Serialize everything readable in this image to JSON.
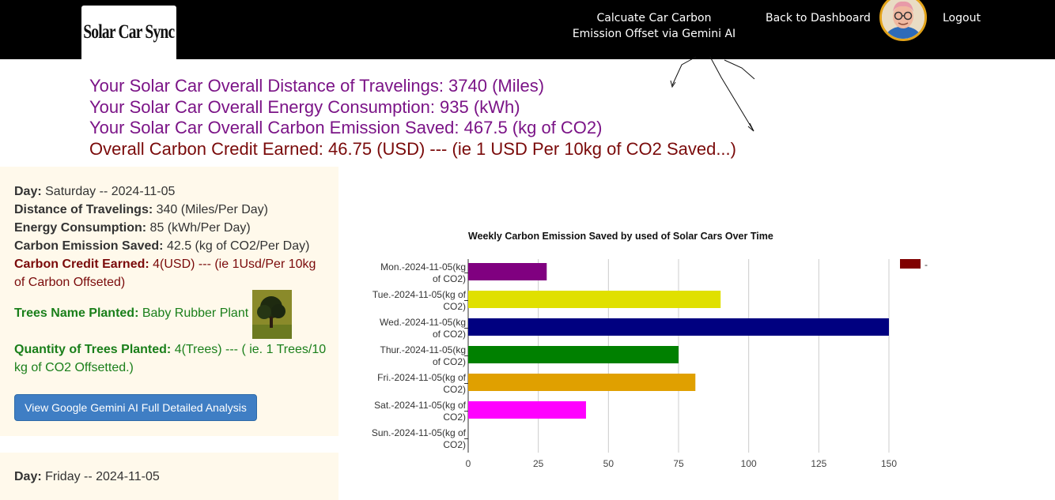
{
  "header": {
    "logo_text": "Solar Car Sync",
    "nav_gemini_line1": "Calcuate Car Carbon",
    "nav_gemini_line2": "Emission Offset via Gemini AI",
    "nav_dashboard": "Back to Dashboard",
    "nav_logout": "Logout"
  },
  "summary": {
    "distance": "Your Solar Car Overall Distance of Travelings: 3740 (Miles)",
    "energy": "Your Solar Car Overall Energy Consumption: 935 (kWh)",
    "emission": "Your Solar Car Overall Carbon Emission Saved: 467.5 (kg of CO2)",
    "credit": "Overall Carbon Credit Earned: 46.75 (USD) --- (ie 1 USD Per 10kg of CO2 Saved...)"
  },
  "day_card": {
    "day_label": "Day:",
    "day_value": " Saturday -- 2024-11-05",
    "distance_label": "Distance of Travelings:",
    "distance_value": " 340 (Miles/Per Day)",
    "energy_label": "Energy Consumption:",
    "energy_value": " 85 (kWh/Per Day)",
    "emission_label": "Carbon Emission Saved:",
    "emission_value": " 42.5 (kg of CO2/Per Day)",
    "credit_label": "Carbon Credit Earned:",
    "credit_value": " 4(USD) --- (ie 1Usd/Per 10kg of Carbon Offseted)",
    "trees_label": "Trees Name Planted:",
    "trees_value": " Baby Rubber Plant",
    "qty_label": "Quantity of Trees Planted:",
    "qty_value": " 4(Trees) --- ( ie. 1 Trees/10 kg of CO2 Offsetted.)",
    "button_label": "View Google Gemini AI Full Detailed Analysis"
  },
  "day_card2": {
    "day_label": "Day:",
    "day_value": " Friday -- 2024-11-05"
  },
  "chart_data": {
    "type": "bar",
    "orientation": "horizontal",
    "title": "Weekly Carbon Emission Saved by used of Solar Cars Over Time",
    "categories": [
      [
        "Mon.-2024-11-05(kg",
        "of CO2)"
      ],
      [
        "Tue.-2024-11-05(kg of",
        "CO2)"
      ],
      [
        "Wed.-2024-11-05(kg",
        "of CO2)"
      ],
      [
        "Thur.-2024-11-05(kg",
        "of CO2)"
      ],
      [
        "Fri.-2024-11-05(kg of",
        "CO2)"
      ],
      [
        "Sat.-2024-11-05(kg of",
        "CO2)"
      ],
      [
        "Sun.-2024-11-05(kg of",
        "CO2)"
      ]
    ],
    "values": [
      28,
      90,
      150,
      75,
      81,
      42,
      0
    ],
    "colors": [
      "#800080",
      "#e0e000",
      "#000080",
      "#008000",
      "#e0a000",
      "#ff00ff",
      "#cccccc"
    ],
    "xlim": [
      0,
      150
    ],
    "xticks": [
      0,
      25,
      50,
      75,
      100,
      125,
      150
    ],
    "grid": true,
    "legend": {
      "label": "-",
      "color": "#800000",
      "placement": "top-right"
    }
  }
}
